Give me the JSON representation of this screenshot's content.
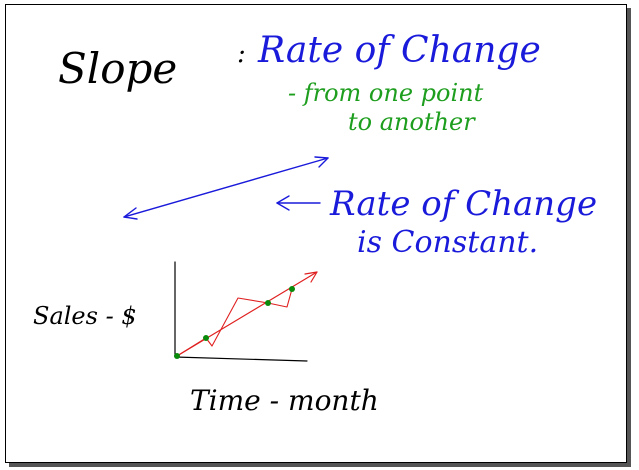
{
  "notes": {
    "heading": "Slope",
    "colon": ":",
    "definition_line1": "Rate of Change",
    "definition_line2": "- from one point",
    "definition_line3": "to another",
    "arrow_note_line1": "Rate of Change",
    "arrow_note_line2": "is Constant."
  },
  "graph": {
    "y_label": "Sales - $",
    "x_label": "Time - month"
  },
  "colors": {
    "ink_black": "#000000",
    "ink_blue": "#1a1adb",
    "ink_green": "#1e9e1e",
    "ink_red": "#e02020",
    "point_green": "#0a8a0a"
  }
}
